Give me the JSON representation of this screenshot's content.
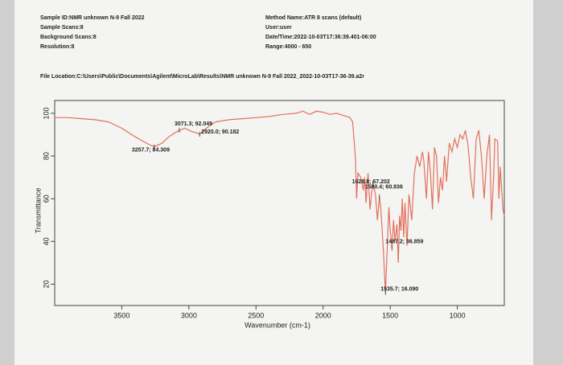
{
  "header": {
    "left": [
      "Sample ID:NMR unknown N-9 Fall 2022",
      "Sample Scans:8",
      "Background Scans:8",
      "Resolution:8"
    ],
    "right": [
      "Method Name:ATR 8 scans (default)",
      "User:user",
      "Date/Time:2022-10-03T17:36:39.401-06:00",
      "Range:4000 - 650"
    ],
    "file_location": "File Location:C:\\Users\\Public\\Documents\\Agilent\\MicroLab\\Results\\NMR unknown N-9 Fall 2022_2022-10-03T17-36-39.a2r"
  },
  "chart_data": {
    "type": "line",
    "x_label": "Wavenumber (cm-1)",
    "y_label": "Transmittance",
    "color": "#e2715c",
    "xlim": [
      4000,
      650
    ],
    "xticks": [
      3500,
      3000,
      2500,
      2000,
      1500,
      1000
    ],
    "ylim": [
      10,
      106
    ],
    "yticks": [
      20,
      40,
      60,
      80,
      100
    ],
    "x": [
      4000,
      3900,
      3800,
      3700,
      3600,
      3500,
      3400,
      3300,
      3257.7,
      3200,
      3150,
      3100,
      3071.3,
      3030,
      2980,
      2950,
      2920,
      2880,
      2850,
      2800,
      2700,
      2600,
      2500,
      2400,
      2300,
      2200,
      2150,
      2100,
      2050,
      2000,
      1950,
      1900,
      1850,
      1800,
      1780,
      1760,
      1750,
      1740,
      1720,
      1700,
      1690,
      1680,
      1665,
      1650,
      1640,
      1628.8,
      1610,
      1595,
      1580.4,
      1570,
      1560,
      1550,
      1535.7,
      1520,
      1510,
      1500,
      1487.2,
      1475,
      1465,
      1450,
      1440,
      1430,
      1420,
      1410,
      1400,
      1390,
      1375,
      1360,
      1340,
      1320,
      1300,
      1280,
      1260,
      1250,
      1230,
      1215,
      1200,
      1185,
      1170,
      1155,
      1140,
      1125,
      1110,
      1095,
      1080,
      1060,
      1040,
      1020,
      1000,
      980,
      960,
      940,
      920,
      900,
      880,
      860,
      840,
      820,
      800,
      780,
      760,
      745,
      730,
      720,
      700,
      690,
      680,
      660,
      650
    ],
    "values": [
      98,
      98,
      97.5,
      97,
      96,
      93,
      89,
      85.5,
      84.3,
      86,
      89,
      91,
      92,
      93,
      91.5,
      91,
      90.2,
      92.5,
      94,
      96,
      97,
      97.5,
      98,
      98.5,
      99.5,
      100,
      101,
      99.5,
      101,
      100.5,
      99.5,
      100,
      99,
      98,
      96,
      80,
      60,
      72,
      70,
      64,
      70,
      58,
      72,
      55,
      62,
      67.2,
      62,
      50,
      60.9,
      55,
      45,
      35,
      16.1,
      40,
      56,
      45,
      36.9,
      50,
      40,
      48,
      30,
      52,
      45,
      60,
      42,
      58,
      38,
      62,
      50,
      72,
      80,
      75,
      82,
      78,
      60,
      82,
      72,
      55,
      84,
      80,
      58,
      70,
      64,
      80,
      68,
      86,
      82,
      88,
      84,
      90,
      88,
      92,
      85,
      70,
      60,
      88,
      92,
      80,
      60,
      80,
      90,
      50,
      70,
      88,
      87,
      60,
      75,
      55,
      52
    ],
    "annotations": [
      {
        "x": 3071.3,
        "y": 92.049,
        "label": "3071.3; 92.049"
      },
      {
        "x": 2920.0,
        "y": 90.182,
        "label": "2920.0; 90.182"
      },
      {
        "x": 3257.7,
        "y": 84.309,
        "label": "3257.7; 84.309"
      },
      {
        "x": 1580.4,
        "y": 60.936,
        "label": "1580.4; 60.936"
      },
      {
        "x": 1628.8,
        "y": 67.202,
        "label": "1628.8; 67.202"
      },
      {
        "x": 1487.2,
        "y": 36.859,
        "label": "1487.2; 36.859"
      },
      {
        "x": 1535.7,
        "y": 16.09,
        "label": "1535.7; 16.090"
      }
    ]
  }
}
